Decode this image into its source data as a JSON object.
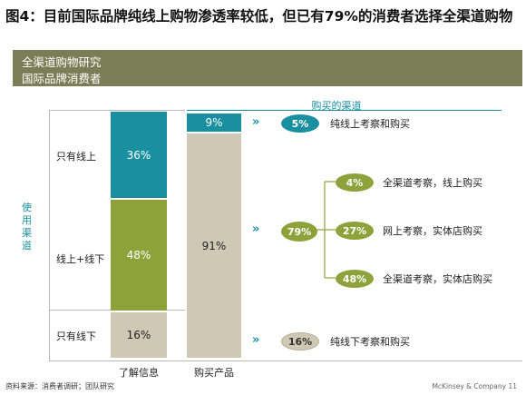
{
  "title": "图4：目前国际品牌纯线上购物渗透率较低，但已有79%的消费者选择全渠道购物",
  "banner": {
    "line1": "全渠道购物研究",
    "line2": "国际品牌消费者"
  },
  "purchase_channel_header": "购买的渠道",
  "y_axis_label": "使用渠道",
  "info_bar": {
    "axis_label": "了解信息",
    "segments": [
      {
        "row_label": "只有线上",
        "value": "36%",
        "color": "#1a8fa0"
      },
      {
        "row_label": "线上+线下",
        "value": "48%",
        "color": "#8fa13a"
      },
      {
        "row_label": "只有线下",
        "value": "16%",
        "color": "#cfc8b5"
      }
    ]
  },
  "purchase_bar": {
    "axis_label": "购买产品",
    "segments": [
      {
        "value": "9%",
        "color": "#1a8fa0"
      },
      {
        "value": "91%",
        "color": "#cfc8b5"
      }
    ]
  },
  "flows": {
    "online_only": {
      "pill": "5%",
      "text": "纯线上考察和购买"
    },
    "omni": {
      "pill": "79%",
      "branches": [
        {
          "pill": "4%",
          "text": "全渠道考察，线上购买"
        },
        {
          "pill": "27%",
          "text": "网上考察，实体店购买"
        },
        {
          "pill": "48%",
          "text": "全渠道考察，实体店购买"
        }
      ]
    },
    "offline_only": {
      "pill": "16%",
      "text": "纯线下考察和购买"
    }
  },
  "chevron": "»",
  "source": "资料来源：消费者调研；团队研究",
  "footer": "McKinsey & Company   11",
  "chart_data": {
    "type": "bar",
    "categories": [
      "了解信息",
      "购买产品"
    ],
    "series": [
      {
        "name": "只有线上",
        "values": [
          36,
          9
        ]
      },
      {
        "name": "线上+线下",
        "values": [
          48,
          null
        ]
      },
      {
        "name": "只有线下",
        "values": [
          16,
          91
        ]
      }
    ],
    "flows": [
      {
        "label": "纯线上考察和购买",
        "value": 5
      },
      {
        "label": "全渠道",
        "value": 79
      },
      {
        "label": "全渠道考察，线上购买",
        "value": 4
      },
      {
        "label": "网上考察，实体店购买",
        "value": 27
      },
      {
        "label": "全渠道考察，实体店购买",
        "value": 48
      },
      {
        "label": "纯线下考察和购买",
        "value": 16
      }
    ]
  }
}
